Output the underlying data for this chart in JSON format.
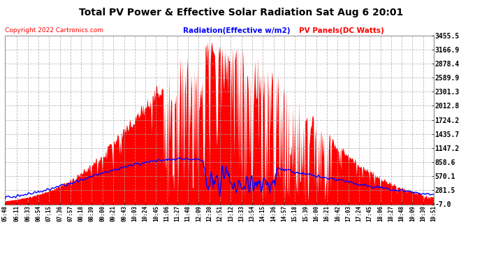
{
  "title": "Total PV Power & Effective Solar Radiation Sat Aug 6 20:01",
  "copyright": "Copyright 2022 Cartronics.com",
  "legend_radiation": "Radiation(Effective w/m2)",
  "legend_pv": "PV Panels(DC Watts)",
  "bg_color": "#ffffff",
  "plot_bg_color": "#ffffff",
  "grid_color": "#aaaaaa",
  "title_color": "#000000",
  "copyright_color": "#ff0000",
  "radiation_color": "#0000ff",
  "pv_color": "#ff0000",
  "yticks": [
    -7.0,
    281.5,
    570.1,
    858.6,
    1147.2,
    1435.7,
    1724.2,
    2012.8,
    2301.3,
    2589.9,
    2878.4,
    3166.9,
    3455.5
  ],
  "ylim": [
    -7.0,
    3455.5
  ],
  "xtick_labels": [
    "05:48",
    "06:11",
    "06:33",
    "06:54",
    "07:15",
    "07:36",
    "07:57",
    "08:18",
    "08:39",
    "09:00",
    "09:21",
    "09:43",
    "10:03",
    "10:24",
    "10:45",
    "11:06",
    "11:27",
    "11:48",
    "12:09",
    "12:30",
    "12:51",
    "13:12",
    "13:33",
    "13:54",
    "14:15",
    "14:36",
    "14:57",
    "15:18",
    "15:39",
    "16:00",
    "16:21",
    "16:42",
    "17:03",
    "17:24",
    "17:45",
    "18:06",
    "18:27",
    "18:48",
    "19:09",
    "19:30",
    "19:51"
  ]
}
